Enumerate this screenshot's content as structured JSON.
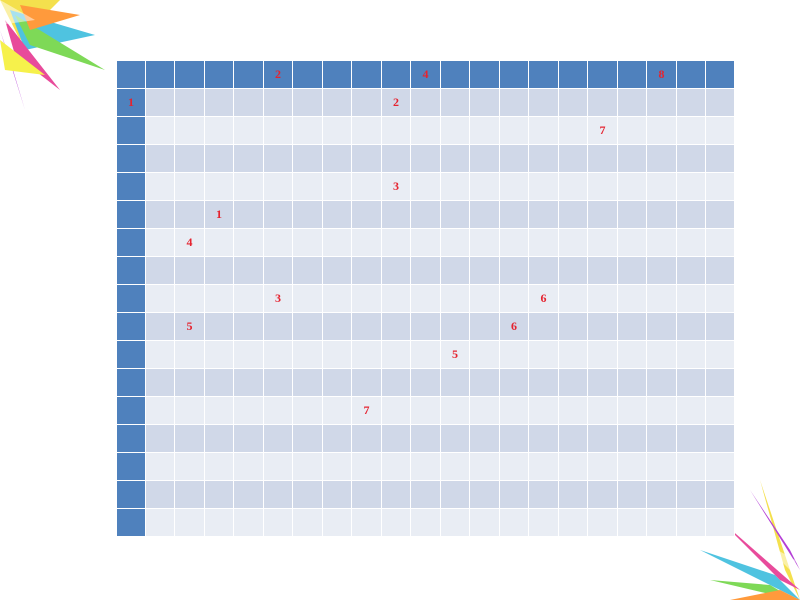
{
  "grid": {
    "colors": {
      "header": "#4f81bd",
      "row_dark": "#d0d8e8",
      "row_light": "#e9edf4",
      "number": "#e5232f"
    },
    "rows": [
      [
        "",
        "",
        "",
        "",
        "",
        "2",
        "",
        "",
        "",
        "",
        "4",
        "",
        "",
        "",
        "",
        "",
        "",
        "",
        "8",
        "",
        ""
      ],
      [
        "1",
        "",
        "",
        "",
        "",
        "",
        "",
        "",
        "",
        "2",
        "",
        "",
        "",
        "",
        "",
        "",
        "",
        "",
        "",
        "",
        ""
      ],
      [
        "",
        "",
        "",
        "",
        "",
        "",
        "",
        "",
        "",
        "",
        "",
        "",
        "",
        "",
        "",
        "",
        "7",
        "",
        "",
        "",
        ""
      ],
      [
        "",
        "",
        "",
        "",
        "",
        "",
        "",
        "",
        "",
        "",
        "",
        "",
        "",
        "",
        "",
        "",
        "",
        "",
        "",
        "",
        ""
      ],
      [
        "",
        "",
        "",
        "",
        "",
        "",
        "",
        "",
        "",
        "3",
        "",
        "",
        "",
        "",
        "",
        "",
        "",
        "",
        "",
        "",
        ""
      ],
      [
        "",
        "",
        "",
        "1",
        "",
        "",
        "",
        "",
        "",
        "",
        "",
        "",
        "",
        "",
        "",
        "",
        "",
        "",
        "",
        "",
        ""
      ],
      [
        "",
        "",
        "4",
        "",
        "",
        "",
        "",
        "",
        "",
        "",
        "",
        "",
        "",
        "",
        "",
        "",
        "",
        "",
        "",
        "",
        ""
      ],
      [
        "",
        "",
        "",
        "",
        "",
        "",
        "",
        "",
        "",
        "",
        "",
        "",
        "",
        "",
        "",
        "",
        "",
        "",
        "",
        "",
        ""
      ],
      [
        "",
        "",
        "",
        "",
        "",
        "3",
        "",
        "",
        "",
        "",
        "",
        "",
        "",
        "",
        "6",
        "",
        "",
        "",
        "",
        "",
        ""
      ],
      [
        "",
        "",
        "5",
        "",
        "",
        "",
        "",
        "",
        "",
        "",
        "",
        "",
        "",
        "6",
        "",
        "",
        "",
        "",
        "",
        "",
        ""
      ],
      [
        "",
        "",
        "",
        "",
        "",
        "",
        "",
        "",
        "",
        "",
        "",
        "5",
        "",
        "",
        "",
        "",
        "",
        "",
        "",
        "",
        ""
      ],
      [
        "",
        "",
        "",
        "",
        "",
        "",
        "",
        "",
        "",
        "",
        "",
        "",
        "",
        "",
        "",
        "",
        "",
        "",
        "",
        "",
        ""
      ],
      [
        "",
        "",
        "",
        "",
        "",
        "",
        "",
        "",
        "7",
        "",
        "",
        "",
        "",
        "",
        "",
        "",
        "",
        "",
        "",
        "",
        ""
      ],
      [
        "",
        "",
        "",
        "",
        "",
        "",
        "",
        "",
        "",
        "",
        "",
        "",
        "",
        "",
        "",
        "",
        "",
        "",
        "",
        "",
        ""
      ],
      [
        "",
        "",
        "",
        "",
        "",
        "",
        "",
        "",
        "",
        "",
        "",
        "",
        "",
        "",
        "",
        "",
        "",
        "",
        "",
        "",
        ""
      ],
      [
        "",
        "",
        "",
        "",
        "",
        "",
        "",
        "",
        "",
        "",
        "",
        "",
        "",
        "",
        "",
        "",
        "",
        "",
        "",
        "",
        ""
      ],
      [
        "",
        "",
        "",
        "",
        "",
        "",
        "",
        "",
        "",
        "",
        "",
        "",
        "",
        "",
        "",
        "",
        "",
        "",
        "",
        "",
        ""
      ]
    ]
  }
}
